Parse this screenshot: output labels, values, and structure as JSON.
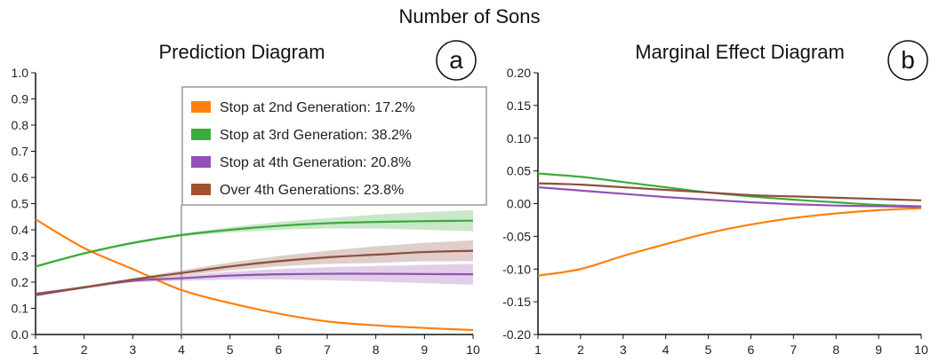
{
  "figure": {
    "title": "Number of Sons"
  },
  "colors": {
    "orange": "#FF7F0E",
    "green": "#3DAA3D",
    "purple": "#9351B5",
    "brown": "#8C4F3E"
  },
  "chart_data": [
    {
      "id": "a",
      "type": "line",
      "title": "Prediction Diagram",
      "panel_label": "a",
      "xlim": [
        1,
        10
      ],
      "ylim": [
        0,
        1
      ],
      "xticks": [
        1,
        2,
        3,
        4,
        5,
        6,
        7,
        8,
        9,
        10
      ],
      "xtick_labels": [
        "1",
        "2",
        "3",
        "4",
        "5",
        "6",
        "7",
        "8",
        "9",
        "10"
      ],
      "yticks": [
        0,
        0.1,
        0.2,
        0.3,
        0.4,
        0.5,
        0.6,
        0.7,
        0.8,
        0.9,
        1.0
      ],
      "ytick_labels": [
        "0.0",
        "0.1",
        "0.2",
        "0.3",
        "0.4",
        "0.5",
        "0.6",
        "0.7",
        "0.8",
        "0.9",
        "1.0"
      ],
      "reference_x": 4,
      "legend_placement": "top-center",
      "legend": [
        {
          "label": "Stop at 2nd Generation: 17.2%",
          "color": "#FF7F0E"
        },
        {
          "label": "Stop at 3rd Generation: 38.2%",
          "color": "#3DAA3D"
        },
        {
          "label": "Stop at 4th Generation: 20.8%",
          "color": "#9351B5"
        },
        {
          "label": "Over 4th Generations: 23.8%",
          "color": "#A0522D"
        }
      ],
      "x": [
        1,
        2,
        3,
        4,
        5,
        6,
        7,
        8,
        9,
        10
      ],
      "series": [
        {
          "color": "#FF7F0E",
          "values": [
            0.44,
            0.33,
            0.25,
            0.17,
            0.12,
            0.08,
            0.05,
            0.035,
            0.025,
            0.017
          ]
        },
        {
          "color": "#3DAA3D",
          "values": [
            0.26,
            0.31,
            0.35,
            0.38,
            0.4,
            0.415,
            0.425,
            0.43,
            0.433,
            0.435
          ],
          "band_upper": [
            0.265,
            0.315,
            0.355,
            0.385,
            0.41,
            0.43,
            0.445,
            0.458,
            0.468,
            0.475
          ],
          "band_lower": [
            0.255,
            0.305,
            0.345,
            0.375,
            0.39,
            0.4,
            0.405,
            0.405,
            0.4,
            0.395
          ]
        },
        {
          "color": "#9351B5",
          "values": [
            0.15,
            0.18,
            0.205,
            0.215,
            0.225,
            0.23,
            0.232,
            0.232,
            0.231,
            0.23
          ],
          "band_upper": [
            0.155,
            0.185,
            0.21,
            0.225,
            0.24,
            0.25,
            0.257,
            0.262,
            0.266,
            0.27
          ],
          "band_lower": [
            0.145,
            0.175,
            0.2,
            0.205,
            0.21,
            0.21,
            0.207,
            0.202,
            0.196,
            0.19
          ]
        },
        {
          "color": "#8C4F3E",
          "values": [
            0.155,
            0.18,
            0.21,
            0.235,
            0.26,
            0.28,
            0.295,
            0.305,
            0.315,
            0.32
          ],
          "band_upper": [
            0.16,
            0.185,
            0.215,
            0.245,
            0.275,
            0.3,
            0.32,
            0.337,
            0.35,
            0.36
          ],
          "band_lower": [
            0.15,
            0.175,
            0.205,
            0.225,
            0.245,
            0.26,
            0.27,
            0.273,
            0.28,
            0.28
          ]
        }
      ]
    },
    {
      "id": "b",
      "type": "line",
      "title": "Marginal Effect Diagram",
      "panel_label": "b",
      "xlim": [
        1,
        10
      ],
      "ylim": [
        -0.2,
        0.2
      ],
      "xticks": [
        1,
        2,
        3,
        4,
        5,
        6,
        7,
        8,
        9,
        10
      ],
      "xtick_labels": [
        "1",
        "2",
        "3",
        "4",
        "5",
        "6",
        "7",
        "8",
        "9",
        "10"
      ],
      "yticks": [
        -0.2,
        -0.15,
        -0.1,
        -0.05,
        0,
        0.05,
        0.1,
        0.15,
        0.2
      ],
      "ytick_labels": [
        "-0.20",
        "-0.15",
        "-0.10",
        "-0.05",
        "0.00",
        "0.05",
        "0.10",
        "0.15",
        "0.20"
      ],
      "x": [
        1,
        2,
        3,
        4,
        5,
        6,
        7,
        8,
        9,
        10
      ],
      "series": [
        {
          "color": "#FF7F0E",
          "values": [
            -0.11,
            -0.1,
            -0.08,
            -0.062,
            -0.045,
            -0.032,
            -0.022,
            -0.015,
            -0.01,
            -0.007
          ]
        },
        {
          "color": "#3DAA3D",
          "values": [
            0.046,
            0.041,
            0.033,
            0.025,
            0.017,
            0.011,
            0.006,
            0.002,
            -0.002,
            -0.004
          ]
        },
        {
          "color": "#9351B5",
          "values": [
            0.025,
            0.02,
            0.015,
            0.01,
            0.006,
            0.002,
            -0.001,
            -0.003,
            -0.004,
            -0.005
          ]
        },
        {
          "color": "#8C4F3E",
          "values": [
            0.031,
            0.029,
            0.025,
            0.021,
            0.017,
            0.013,
            0.011,
            0.009,
            0.007,
            0.005
          ]
        }
      ]
    }
  ]
}
